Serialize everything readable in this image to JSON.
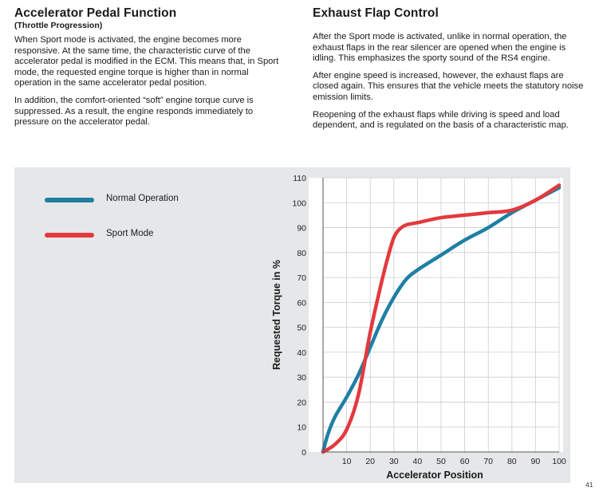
{
  "left": {
    "title": "Accelerator Pedal Function",
    "subtitle": "(Throttle Progression)",
    "paragraphs": [
      "When Sport mode is activated, the engine becomes more responsive. At the same time, the characteristic curve of the accelerator pedal is modified in the ECM. This means that, in Sport mode, the requested engine torque is higher than in normal operation in the same accelerator pedal position.",
      "In addition, the comfort-oriented “soft” engine torque curve is suppressed. As a result, the engine responds immediately to pressure on the accelerator pedal."
    ]
  },
  "right": {
    "title": "Exhaust Flap Control",
    "paragraphs": [
      "After the Sport mode is activated, unlike in normal operation, the exhaust flaps in the rear silencer are opened when the engine is idling. This emphasizes the sporty sound of the RS4 engine.",
      "After engine speed is increased, however, the exhaust flaps are closed again. This ensures that the vehicle meets the statutory noise emission limits.",
      "Reopening of the exhaust flaps while driving is speed and load dependent, and is regulated on the basis of a characteristic map."
    ]
  },
  "page_number": "41",
  "chart_data": {
    "type": "line",
    "title": "",
    "xlabel": "Accelerator Position",
    "ylabel": "Requested Torque in %",
    "xlim": [
      0,
      100
    ],
    "ylim": [
      0,
      110
    ],
    "x_ticks": [
      10,
      20,
      30,
      40,
      50,
      60,
      70,
      80,
      90,
      100
    ],
    "y_ticks": [
      0,
      10,
      20,
      30,
      40,
      50,
      60,
      70,
      80,
      90,
      100,
      110
    ],
    "grid": true,
    "legend_position": "top-left",
    "series": [
      {
        "name": "Normal Operation",
        "color": "#1f7fa3",
        "x": [
          0,
          2,
          5,
          10,
          15,
          20,
          25,
          30,
          35,
          40,
          50,
          60,
          70,
          80,
          90,
          100
        ],
        "y": [
          0,
          7,
          14,
          22,
          31,
          42,
          53,
          62,
          69,
          73,
          79,
          85,
          90,
          96,
          101,
          106
        ]
      },
      {
        "name": "Sport Mode",
        "color": "#e23a3e",
        "x": [
          0,
          5,
          10,
          15,
          20,
          25,
          28,
          30,
          32,
          35,
          40,
          50,
          60,
          70,
          80,
          90,
          100
        ],
        "y": [
          0,
          3,
          9,
          23,
          48,
          69,
          80,
          86,
          89,
          91,
          92,
          94,
          95,
          96,
          97,
          101,
          107
        ]
      }
    ]
  }
}
